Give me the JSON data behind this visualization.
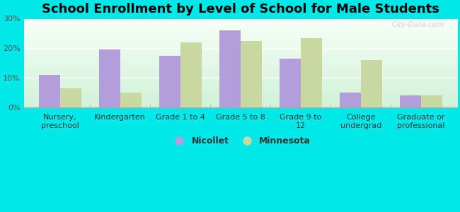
{
  "title": "School Enrollment by Level of School for Male Students",
  "categories": [
    "Nursery,\npreschool",
    "Kindergarten",
    "Grade 1 to 4",
    "Grade 5 to 8",
    "Grade 9 to\n12",
    "College\nundergrad",
    "Graduate or\nprofessional"
  ],
  "nicollet_values": [
    11.0,
    19.5,
    17.5,
    26.0,
    16.5,
    5.0,
    4.0
  ],
  "minnesota_values": [
    6.5,
    5.0,
    22.0,
    22.5,
    23.5,
    16.0,
    4.0
  ],
  "nicollet_color": "#b39ddb",
  "minnesota_color": "#c8d8a0",
  "background_color": "#00e8e8",
  "ylim": [
    0,
    30
  ],
  "yticks": [
    0,
    10,
    20,
    30
  ],
  "ytick_labels": [
    "0%",
    "10%",
    "20%",
    "30%"
  ],
  "bar_width": 0.35,
  "title_fontsize": 13,
  "tick_fontsize": 8,
  "legend_fontsize": 9,
  "watermark": "City-Data.com"
}
